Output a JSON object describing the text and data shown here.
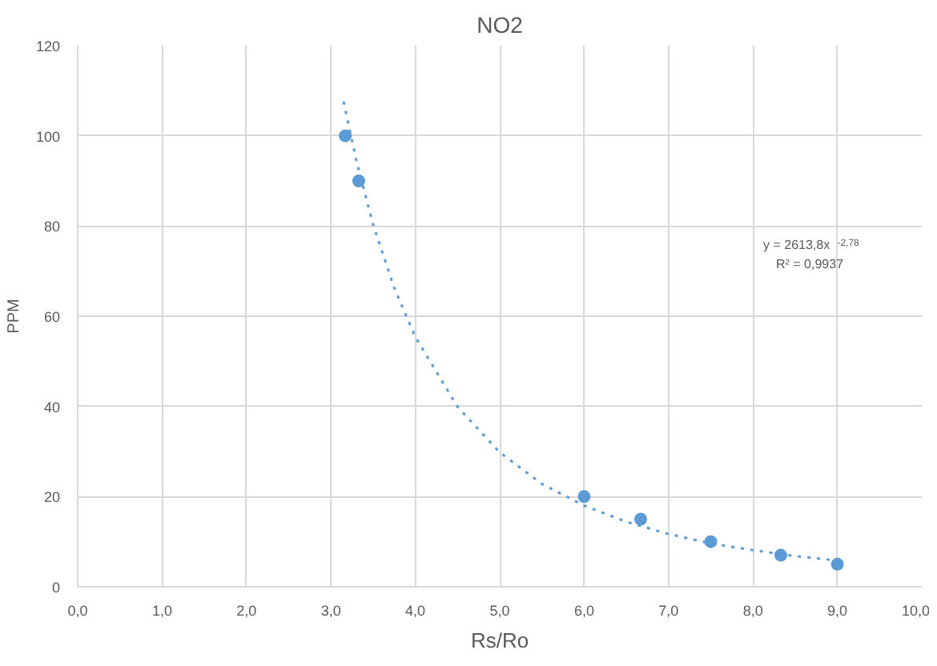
{
  "chart_data": {
    "type": "scatter",
    "title": "NO2",
    "xlabel": "Rs/Ro",
    "ylabel": "PPM",
    "series": [
      {
        "color": "#5b9bd5",
        "x": [
          3.17,
          3.33,
          6.0,
          6.67,
          7.5,
          8.33,
          9.0
        ],
        "values": [
          100,
          90,
          20,
          15,
          10,
          7,
          5
        ],
        "marker": "circle"
      },
      {
        "type": "line",
        "color": "#5b9bd5",
        "line_style": "dotted",
        "x": [
          3.15,
          3.3,
          3.5,
          3.75,
          4,
          4.5,
          5,
          5.5,
          6,
          6.5,
          7,
          7.5,
          8,
          8.5,
          9
        ],
        "values": [
          107.6,
          94.6,
          80.3,
          66.3,
          55.4,
          39.9,
          29.8,
          22.8,
          18.0,
          14.4,
          11.7,
          9.6,
          8.1,
          6.8,
          5.8
        ]
      }
    ],
    "annotations": [
      "y = 2613,8x$^{-2,78}$",
      "R² = 0,9937"
    ],
    "xlim": [
      0,
      10
    ],
    "xticks": [
      {
        "value": 0,
        "label": "0,0"
      },
      {
        "value": 1,
        "label": "1,0"
      },
      {
        "value": 2,
        "label": "2,0"
      },
      {
        "value": 3,
        "label": "3,0"
      },
      {
        "value": 4,
        "label": "4,0"
      },
      {
        "value": 5,
        "label": "5,0"
      },
      {
        "value": 6,
        "label": "6,0"
      },
      {
        "value": 7,
        "label": "7,0"
      },
      {
        "value": 8,
        "label": "8,0"
      },
      {
        "value": 9,
        "label": "9,0"
      },
      {
        "value": 10,
        "label": "10,0"
      }
    ],
    "ylim": [
      0,
      120
    ],
    "yticks": [
      0,
      20,
      40,
      60,
      80,
      100,
      120
    ],
    "grid": true
  }
}
